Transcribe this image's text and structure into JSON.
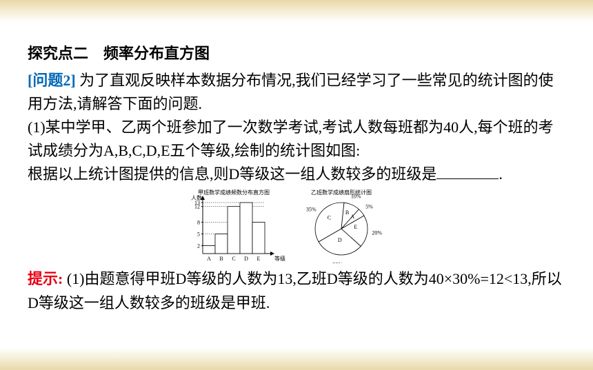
{
  "heading": {
    "point": "探究点二",
    "title": "频率分布直方图"
  },
  "question": {
    "label": "[问题2]",
    "intro": "为了直观反映样本数据分布情况,我们已经学习了一些常见的统计图的使用方法,请解答下面的问题.",
    "item1_a": "(1)某中学甲、乙两个班参加了一次数学考试,考试人数每班都为40人,每个班的考试成绩分为A,B,C,D,E五个等级,绘制的统计图如图:",
    "item1_b": "根据以上统计图提供的信息,则D等级这一组人数较多的班级是",
    "item1_end": "."
  },
  "chart": {
    "bar": {
      "title": "甲班数学成绩频数分布直方图",
      "ylabel": "人数",
      "xlabel": "等级",
      "categories": [
        "A",
        "B",
        "C",
        "D",
        "E"
      ],
      "values": [
        2,
        5,
        12,
        13,
        8
      ],
      "yticks": [
        2,
        5,
        8,
        12,
        13
      ],
      "bar_fill": "#ffffff",
      "bar_stroke": "#000000",
      "axis_color": "#000000"
    },
    "pie": {
      "title": "乙班数学成绩扇形统计图",
      "slices": [
        {
          "label": "C",
          "pct": 35,
          "text": "35%"
        },
        {
          "label": "B",
          "pct": 10,
          "text": "10%"
        },
        {
          "label": "A",
          "pct": 5,
          "text": "5%"
        },
        {
          "label": "E",
          "pct": 20,
          "text": "20%"
        },
        {
          "label": "D",
          "pct": 30,
          "text": "30%"
        }
      ],
      "fill": "#ffffff",
      "stroke": "#000000"
    }
  },
  "hint": {
    "label": "提示:",
    "text": "(1)由题意得甲班D等级的人数为13,乙班D等级的人数为40×30%=12<13,所以D等级这一组人数较多的班级是甲班."
  }
}
